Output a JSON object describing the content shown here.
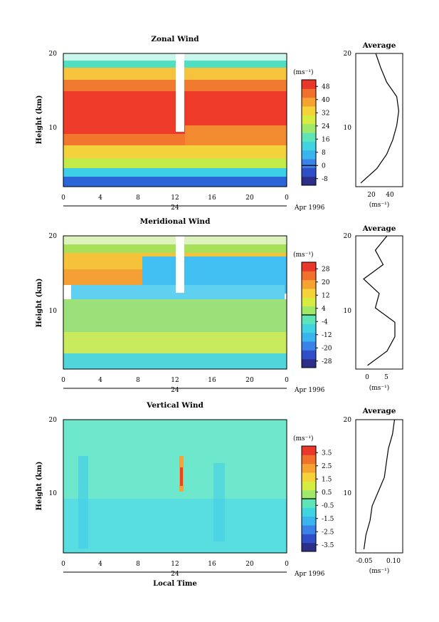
{
  "figure": {
    "time_axis_label": "Local Time",
    "date_marker": "24",
    "date_label": "Apr 1996",
    "height_axis_label": "Height (km)",
    "time_tick_labels": [
      "0",
      "4",
      "8",
      "12",
      "16",
      "20",
      "0"
    ],
    "height_tick_labels": [
      "20",
      "10"
    ],
    "units_label": "(ms⁻¹)",
    "average_title": "Average"
  },
  "chart_data": [
    {
      "type": "heatmap",
      "title": "Zonal Wind",
      "xlabel": "",
      "ylabel": "Height (km)",
      "x_range_hours": [
        0,
        24
      ],
      "ylim": [
        1.5,
        20
      ],
      "colorbar": {
        "label": "(ms⁻¹)",
        "ticks": [
          48,
          40,
          32,
          24,
          16,
          8,
          0,
          -8
        ],
        "range": [
          -12,
          52
        ],
        "zero_line": 0
      },
      "description_profile_height_km": [
        2,
        4,
        6,
        8,
        10,
        12,
        14,
        16,
        18,
        20
      ],
      "profile_values_ms": [
        10,
        26,
        36,
        42,
        46,
        48,
        46,
        36,
        30,
        25
      ]
    },
    {
      "type": "heatmap",
      "title": "Meridional Wind",
      "xlabel": "",
      "ylabel": "Height (km)",
      "x_range_hours": [
        0,
        24
      ],
      "ylim": [
        1.5,
        20
      ],
      "colorbar": {
        "label": "(ms⁻¹)",
        "ticks": [
          28,
          20,
          12,
          4,
          -4,
          -12,
          -20,
          -28
        ],
        "range": [
          -32,
          32
        ],
        "zero_line": 0
      },
      "profile_height_km": [
        2,
        4,
        6,
        8,
        10,
        12,
        14,
        16,
        18,
        20
      ],
      "profile_values_ms": [
        0,
        5,
        7,
        7,
        2,
        3,
        -1,
        4,
        2,
        5
      ]
    },
    {
      "type": "heatmap",
      "title": "Vertical Wind",
      "xlabel": "Local Time",
      "ylabel": "Height (km)",
      "x_range_hours": [
        0,
        24
      ],
      "ylim": [
        1.5,
        20
      ],
      "colorbar": {
        "label": "(ms⁻¹)",
        "ticks": [
          "3.5",
          "2.5",
          "1.5",
          "0.5",
          "-0.5",
          "-1.5",
          "-2.5",
          "-3.5"
        ],
        "range": [
          -4,
          4
        ],
        "zero_line": 0
      },
      "profile_height_km": [
        2,
        4,
        6,
        8,
        10,
        12,
        14,
        16,
        18,
        20
      ],
      "profile_values_ms": [
        -0.05,
        -0.04,
        -0.02,
        -0.01,
        0.02,
        0.05,
        0.06,
        0.07,
        0.09,
        0.1
      ]
    }
  ],
  "average_axes": [
    {
      "xlim": [
        5,
        52
      ],
      "tick_values": [
        20,
        40
      ],
      "tick_labels": [
        "20",
        "40"
      ],
      "xlabel": "(ms⁻¹)"
    },
    {
      "xlim": [
        -3,
        9
      ],
      "tick_values": [
        0,
        5
      ],
      "tick_labels": [
        "0",
        "5"
      ],
      "xlabel": "(ms⁻¹)"
    },
    {
      "xlim": [
        -0.09,
        0.14
      ],
      "tick_values": [
        -0.05,
        0.1
      ],
      "tick_labels": [
        "-0.05",
        "0.10"
      ],
      "xlabel": "(ms⁻¹)"
    }
  ]
}
